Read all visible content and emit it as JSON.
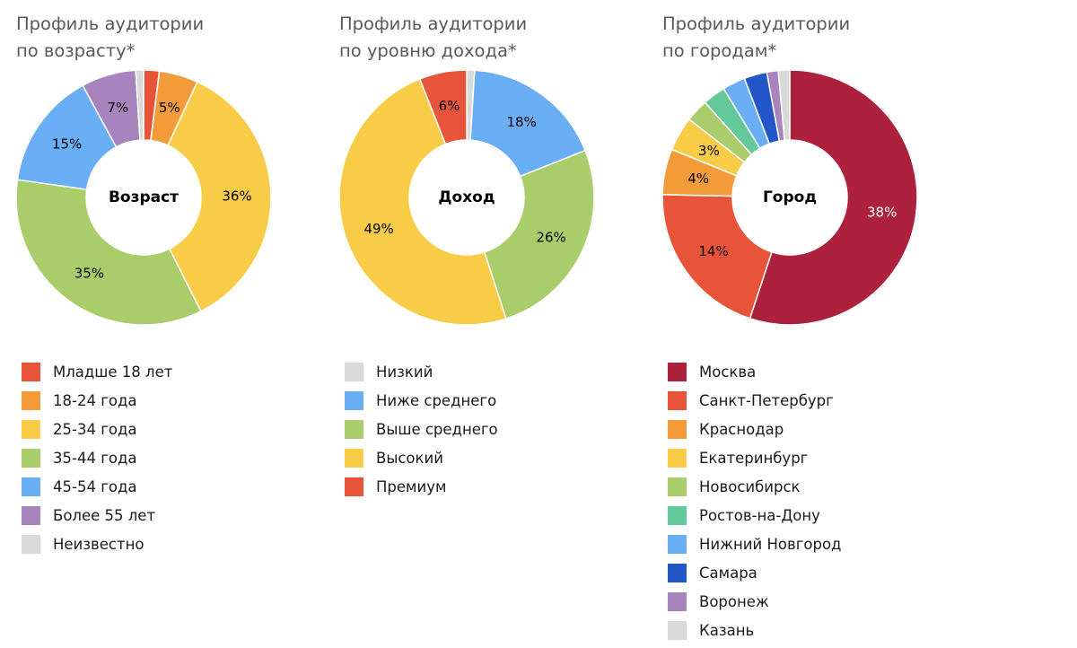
{
  "chart_data": [
    {
      "type": "pie",
      "title": [
        "Профиль аудитории",
        "по возрасту*"
      ],
      "center_label": "Возраст",
      "slices": [
        {
          "label": "Младше 18 лет",
          "value": 2,
          "color": "#e8543a",
          "show_value": false
        },
        {
          "label": "18-24 года",
          "value": 5,
          "color": "#f29b38",
          "show_value": true
        },
        {
          "label": "25-34 года",
          "value": 36,
          "color": "#f8cc46",
          "show_value": true
        },
        {
          "label": "35-44 года",
          "value": 35,
          "color": "#a8cd6a",
          "show_value": true
        },
        {
          "label": "45-54 года",
          "value": 15,
          "color": "#6aaef5",
          "show_value": true
        },
        {
          "label": "Более 55 лет",
          "value": 7,
          "color": "#a884bf",
          "show_value": true
        },
        {
          "label": "Неизвестно",
          "value": 1,
          "color": "#d9d9d9",
          "show_value": false
        }
      ]
    },
    {
      "type": "pie",
      "title": [
        "Профиль аудитории",
        "по уровню дохода*"
      ],
      "center_label": "Доход",
      "slices": [
        {
          "label": "Низкий",
          "value": 1,
          "color": "#d9d9d9",
          "show_value": false
        },
        {
          "label": "Ниже среднего",
          "value": 18,
          "color": "#6aaef5",
          "show_value": true
        },
        {
          "label": "Выше среднего",
          "value": 26,
          "color": "#a8cd6a",
          "show_value": true
        },
        {
          "label": "Высокий",
          "value": 49,
          "color": "#f8cc46",
          "show_value": true
        },
        {
          "label": "Премиум",
          "value": 6,
          "color": "#e8543a",
          "show_value": true
        }
      ]
    },
    {
      "type": "pie",
      "title": [
        "Профиль аудитории",
        "по городам*"
      ],
      "center_label": "Город",
      "slices": [
        {
          "label": "Москва",
          "value": 38,
          "color": "#ad213d",
          "show_value": true,
          "light_text": true
        },
        {
          "label": "Санкт-Петербург",
          "value": 14,
          "color": "#e8543a",
          "show_value": true
        },
        {
          "label": "Краснодар",
          "value": 4,
          "color": "#f29b38",
          "show_value": true
        },
        {
          "label": "Екатеринбург",
          "value": 3,
          "color": "#f8cc46",
          "show_value": true
        },
        {
          "label": "Новосибирск",
          "value": 2,
          "color": "#a8cd6a",
          "show_value": false
        },
        {
          "label": "Ростов-на-Дону",
          "value": 2,
          "color": "#63c99a",
          "show_value": false
        },
        {
          "label": "Нижний Новгород",
          "value": 2,
          "color": "#6aaef5",
          "show_value": false
        },
        {
          "label": "Самара",
          "value": 2,
          "color": "#2356c8",
          "show_value": false
        },
        {
          "label": "Воронеж",
          "value": 1,
          "color": "#a884bf",
          "show_value": false
        },
        {
          "label": "Казань",
          "value": 1,
          "color": "#d9d9d9",
          "show_value": false
        }
      ]
    }
  ]
}
